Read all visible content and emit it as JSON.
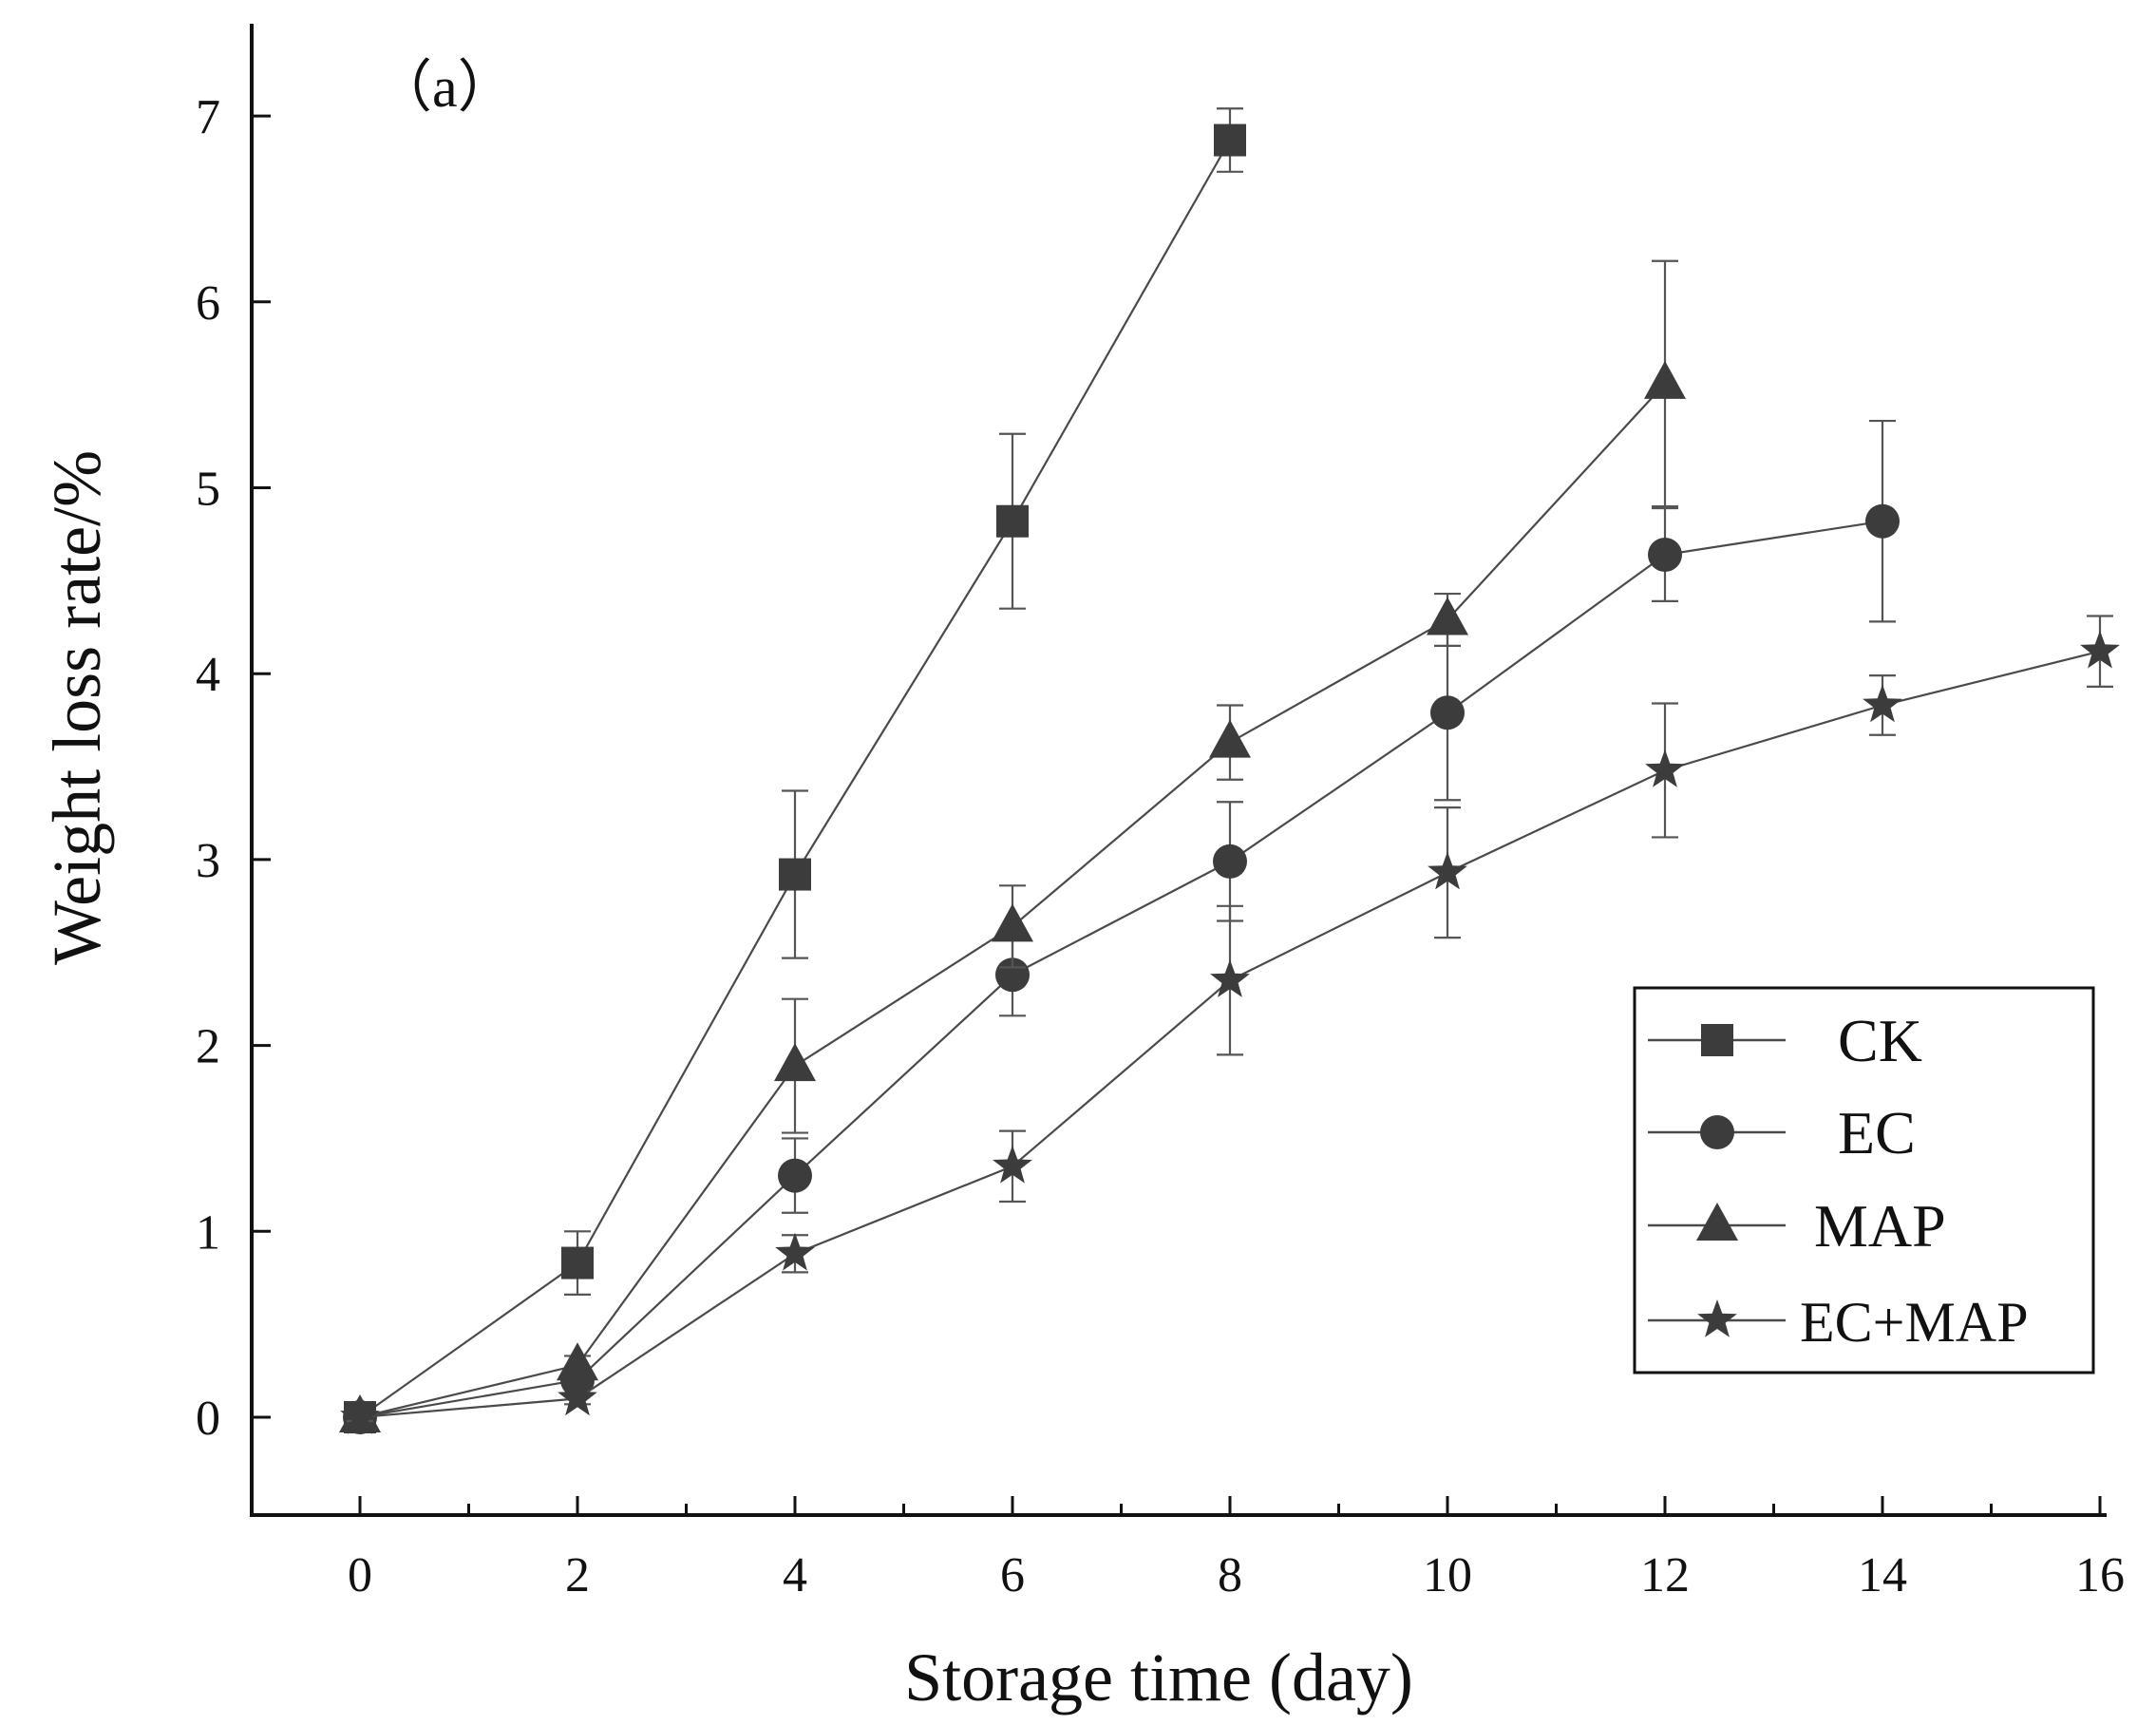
{
  "colors": {
    "axis": "#111111",
    "series_line": "#4a4a4a",
    "marker": "#3c3c3c",
    "error_bar": "#555555",
    "background": "#ffffff"
  },
  "chart_data": {
    "type": "line",
    "panel_label": "（a）",
    "title": "",
    "xlabel": "Storage time (day)",
    "ylabel": "Weight loss rate/%",
    "xlim": [
      -1,
      16
    ],
    "ylim": [
      -0.5,
      7.5
    ],
    "x_ticks": [
      0,
      2,
      4,
      6,
      8,
      10,
      12,
      14,
      16
    ],
    "x_tick_labels": [
      "0",
      "2",
      "4",
      "6",
      "8",
      "10",
      "12",
      "14",
      "16"
    ],
    "y_ticks": [
      0,
      1,
      2,
      3,
      4,
      5,
      6,
      7
    ],
    "y_tick_labels": [
      "0",
      "1",
      "2",
      "3",
      "4",
      "5",
      "6",
      "7"
    ],
    "grid": false,
    "legend_position": "center-right",
    "series": [
      {
        "name": "CK",
        "marker": "square",
        "x": [
          0,
          2,
          4,
          6,
          8
        ],
        "values": [
          0,
          0.83,
          2.92,
          4.82,
          6.87
        ],
        "errors": [
          0.02,
          0.17,
          0.45,
          0.47,
          0.17
        ]
      },
      {
        "name": "EC",
        "marker": "circle",
        "x": [
          0,
          2,
          4,
          6,
          8,
          10,
          12,
          14
        ],
        "values": [
          0,
          0.2,
          1.3,
          2.38,
          2.99,
          3.79,
          4.64,
          4.82
        ],
        "errors": [
          0.02,
          0.05,
          0.2,
          0.22,
          0.32,
          0.47,
          0.25,
          0.54
        ]
      },
      {
        "name": "MAP",
        "marker": "triangle",
        "x": [
          0,
          2,
          4,
          6,
          8,
          10,
          12
        ],
        "values": [
          0,
          0.28,
          1.89,
          2.64,
          3.63,
          4.29,
          5.56
        ],
        "errors": [
          0.02,
          0.05,
          0.36,
          0.22,
          0.2,
          0.14,
          0.66
        ]
      },
      {
        "name": "EC+MAP",
        "marker": "star",
        "x": [
          0,
          2,
          4,
          6,
          8,
          10,
          12,
          14,
          16
        ],
        "values": [
          0,
          0.1,
          0.88,
          1.35,
          2.35,
          2.93,
          3.48,
          3.83,
          4.12
        ],
        "errors": [
          0.02,
          0.03,
          0.1,
          0.19,
          0.4,
          0.35,
          0.36,
          0.16,
          0.19
        ]
      }
    ]
  }
}
